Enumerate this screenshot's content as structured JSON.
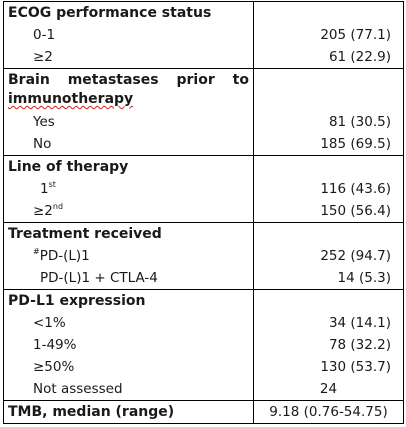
{
  "sections": {
    "ecog": {
      "header": "ECOG performance status",
      "rows": [
        {
          "label": "0-1",
          "value": "205 (77.1)"
        },
        {
          "label": "≥2",
          "value": "61 (22.9)"
        }
      ]
    },
    "brain": {
      "header_words": [
        "Brain",
        "metastases",
        "prior",
        "to"
      ],
      "header_line2": "immunotherapy",
      "rows": [
        {
          "label": "Yes",
          "value": "81 (30.5)"
        },
        {
          "label": "No",
          "value": "185 (69.5)"
        }
      ]
    },
    "line": {
      "header": "Line of therapy",
      "rows": [
        {
          "label": "1",
          "sup": "st",
          "value": "116 (43.6)"
        },
        {
          "label": "≥2",
          "sup": "nd",
          "value": "150 (56.4)"
        }
      ]
    },
    "treatment": {
      "header": "Treatment received",
      "rows": [
        {
          "prefix": "#",
          "label": "PD-(L)1",
          "value": "252 (94.7)"
        },
        {
          "label": "PD-(L)1 + CTLA-4",
          "value": "14 (5.3)"
        }
      ]
    },
    "pdl1": {
      "header": "PD-L1 expression",
      "rows": [
        {
          "label": "<1%",
          "value": "34 (14.1)"
        },
        {
          "label": "1-49%",
          "value": "78 (32.2)"
        },
        {
          "label": "≥50%",
          "value": "130 (53.7)"
        },
        {
          "label": "Not assessed",
          "value": "24"
        }
      ]
    },
    "tmb": {
      "label": "TMB, median (range)",
      "value": "9.18 (0.76-54.75)"
    }
  }
}
